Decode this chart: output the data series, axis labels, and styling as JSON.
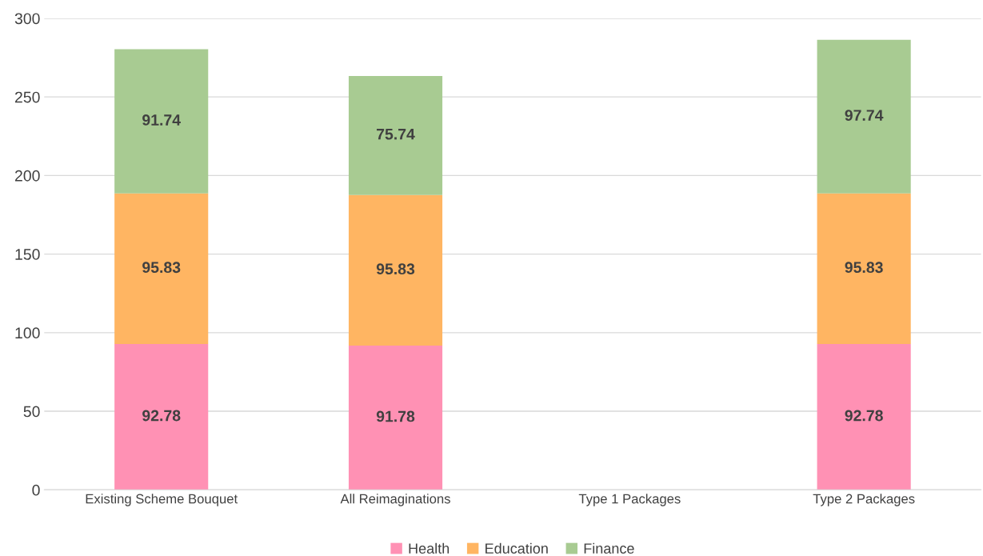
{
  "chart_data": {
    "type": "bar",
    "stacked": true,
    "categories": [
      "Existing Scheme Bouquet",
      "All Reimaginations",
      "Type 1 Packages",
      "Type 2 Packages"
    ],
    "series": [
      {
        "name": "Health",
        "color": "#ff91b4",
        "values": [
          92.78,
          91.78,
          null,
          92.78
        ]
      },
      {
        "name": "Education",
        "color": "#ffb562",
        "values": [
          95.83,
          95.83,
          null,
          95.83
        ]
      },
      {
        "name": "Finance",
        "color": "#a8cb92",
        "values": [
          91.74,
          75.74,
          null,
          97.74
        ]
      }
    ],
    "ylim": [
      0,
      300
    ],
    "yticks": [
      0,
      50,
      100,
      150,
      200,
      250,
      300
    ],
    "grid": "y",
    "legend": "bottom",
    "data_labels": true
  }
}
